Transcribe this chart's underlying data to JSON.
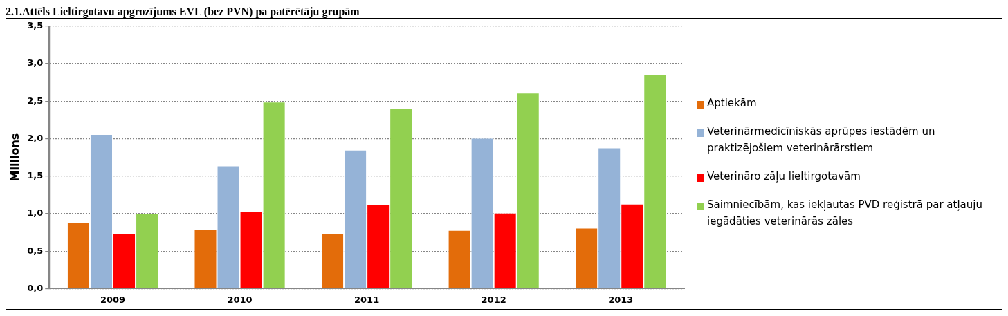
{
  "chart_data": {
    "type": "bar",
    "title": "2.1.Attēls Lieltirgotavu apgrozījums EVL (bez PVN) pa patērētāju grupām",
    "ylabel": "Millions",
    "categories": [
      "2009",
      "2010",
      "2011",
      "2012",
      "2013"
    ],
    "series": [
      {
        "name": "Aptiekām",
        "color": "#e36c0a",
        "values": [
          0.88,
          0.79,
          0.74,
          0.78,
          0.81
        ]
      },
      {
        "name": "Veterinārmedicīniskās aprūpes iestādēm un praktizējošiem veterinārārstiem",
        "color": "#95b3d7",
        "values": [
          2.06,
          1.64,
          1.85,
          2.01,
          1.88
        ]
      },
      {
        "name": "Veterināro zāļu lieltirgotavām",
        "color": "#ff0000",
        "values": [
          0.74,
          1.03,
          1.12,
          1.01,
          1.13
        ]
      },
      {
        "name": "Saimniecībām, kas iekļautas PVD reģistrā par atļauju iegādāties veterinārās zāles",
        "color": "#92d050",
        "values": [
          1.0,
          2.49,
          2.41,
          2.61,
          2.86
        ]
      }
    ],
    "ylim": [
      0,
      3.5
    ],
    "yticks": [
      {
        "value": 0,
        "label": "0,0"
      },
      {
        "value": 0.5,
        "label": "0,5"
      },
      {
        "value": 1,
        "label": "1,0"
      },
      {
        "value": 1.5,
        "label": "1,5"
      },
      {
        "value": 2,
        "label": "2,0"
      },
      {
        "value": 2.5,
        "label": "2,5"
      },
      {
        "value": 3,
        "label": "3,0"
      },
      {
        "value": 3.5,
        "label": "3,5"
      }
    ],
    "grid": "y",
    "legend": "right"
  }
}
